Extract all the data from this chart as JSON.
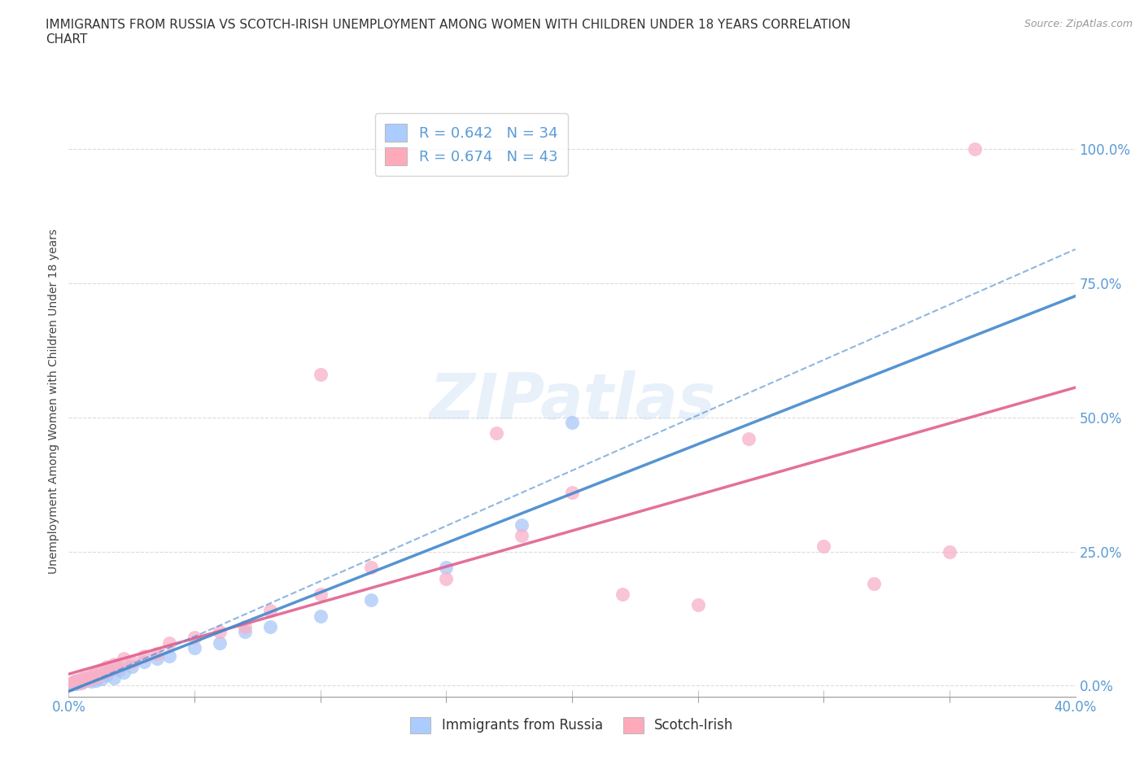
{
  "title": "IMMIGRANTS FROM RUSSIA VS SCOTCH-IRISH UNEMPLOYMENT AMONG WOMEN WITH CHILDREN UNDER 18 YEARS CORRELATION\nCHART",
  "source": "Source: ZipAtlas.com",
  "xlim": [
    0,
    40
  ],
  "ylim": [
    -2,
    108
  ],
  "ylabel": "Unemployment Among Women with Children Under 18 years",
  "russia_R": 0.642,
  "russia_N": 34,
  "scotch_R": 0.674,
  "scotch_N": 43,
  "russia_color": "#a8c8f8",
  "scotch_color": "#f8b0c8",
  "russia_line_color": "#4488cc",
  "scotch_line_color": "#e06090",
  "russia_scatter": [
    [
      0.1,
      0.2
    ],
    [
      0.15,
      0.5
    ],
    [
      0.2,
      0.3
    ],
    [
      0.25,
      0.8
    ],
    [
      0.3,
      0.4
    ],
    [
      0.35,
      0.6
    ],
    [
      0.4,
      0.5
    ],
    [
      0.5,
      0.7
    ],
    [
      0.5,
      1.0
    ],
    [
      0.6,
      0.8
    ],
    [
      0.7,
      0.9
    ],
    [
      0.8,
      1.2
    ],
    [
      0.9,
      0.8
    ],
    [
      1.0,
      1.5
    ],
    [
      1.1,
      1.0
    ],
    [
      1.2,
      1.8
    ],
    [
      1.3,
      1.2
    ],
    [
      1.5,
      2.0
    ],
    [
      1.8,
      1.5
    ],
    [
      2.0,
      3.0
    ],
    [
      2.2,
      2.5
    ],
    [
      2.5,
      3.5
    ],
    [
      3.0,
      4.5
    ],
    [
      3.5,
      5.0
    ],
    [
      4.0,
      5.5
    ],
    [
      5.0,
      7.0
    ],
    [
      6.0,
      8.0
    ],
    [
      7.0,
      10.0
    ],
    [
      8.0,
      11.0
    ],
    [
      10.0,
      13.0
    ],
    [
      12.0,
      16.0
    ],
    [
      15.0,
      22.0
    ],
    [
      18.0,
      30.0
    ],
    [
      20.0,
      49.0
    ]
  ],
  "scotch_scatter": [
    [
      0.1,
      0.3
    ],
    [
      0.2,
      0.5
    ],
    [
      0.2,
      0.8
    ],
    [
      0.3,
      0.6
    ],
    [
      0.3,
      1.0
    ],
    [
      0.4,
      0.8
    ],
    [
      0.5,
      1.2
    ],
    [
      0.5,
      0.5
    ],
    [
      0.6,
      1.5
    ],
    [
      0.7,
      1.0
    ],
    [
      0.8,
      1.8
    ],
    [
      0.9,
      1.2
    ],
    [
      1.0,
      2.0
    ],
    [
      1.1,
      2.5
    ],
    [
      1.2,
      1.8
    ],
    [
      1.3,
      3.0
    ],
    [
      1.5,
      3.5
    ],
    [
      1.6,
      2.8
    ],
    [
      1.8,
      4.0
    ],
    [
      2.0,
      3.5
    ],
    [
      2.2,
      5.0
    ],
    [
      2.5,
      4.5
    ],
    [
      3.0,
      5.5
    ],
    [
      3.5,
      6.0
    ],
    [
      4.0,
      8.0
    ],
    [
      5.0,
      9.0
    ],
    [
      6.0,
      10.0
    ],
    [
      7.0,
      11.0
    ],
    [
      8.0,
      14.0
    ],
    [
      10.0,
      17.0
    ],
    [
      12.0,
      22.0
    ],
    [
      15.0,
      20.0
    ],
    [
      18.0,
      28.0
    ],
    [
      20.0,
      36.0
    ],
    [
      22.0,
      17.0
    ],
    [
      25.0,
      15.0
    ],
    [
      27.0,
      46.0
    ],
    [
      30.0,
      26.0
    ],
    [
      32.0,
      19.0
    ],
    [
      35.0,
      25.0
    ],
    [
      36.0,
      100.0
    ],
    [
      10.0,
      58.0
    ],
    [
      17.0,
      47.0
    ]
  ],
  "background_color": "#ffffff",
  "grid_color": "#cccccc",
  "tick_color": "#5b9bd5",
  "legend_box_russia": "#aaccff",
  "legend_box_scotch": "#ffaabb",
  "ylabel_vals": [
    0,
    25,
    50,
    75,
    100
  ],
  "x_minor_ticks": [
    0,
    5,
    10,
    15,
    20,
    25,
    30,
    35,
    40
  ]
}
